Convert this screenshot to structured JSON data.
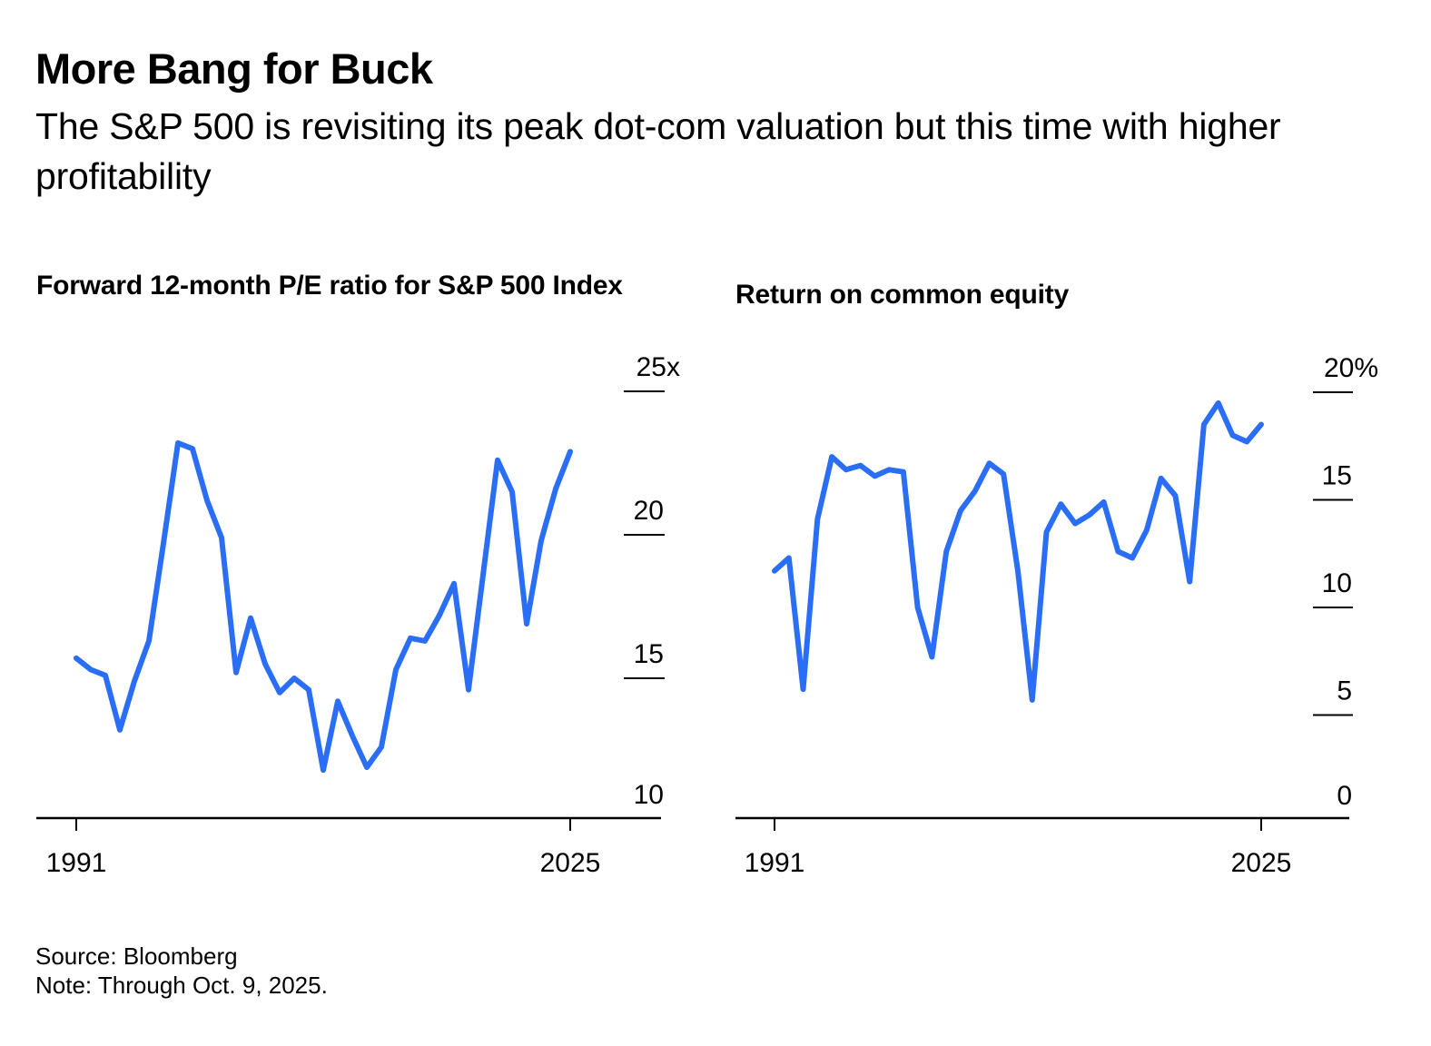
{
  "header": {
    "title": "More Bang for Buck",
    "subtitle": "The S&P 500 is revisiting its peak dot-com valuation but this time with higher profitability"
  },
  "footer": {
    "source": "Source: Bloomberg",
    "note": "Note: Through Oct. 9, 2025."
  },
  "colors": {
    "line": "#2a6ef6",
    "axis": "#000000"
  },
  "chart_data": [
    {
      "type": "line",
      "title": "Forward 12-month P/E ratio for S&P 500 Index",
      "xlabel": "",
      "ylabel": "",
      "x": [
        1991,
        1992,
        1993,
        1994,
        1995,
        1996,
        1997,
        1998,
        1999,
        2000,
        2001,
        2002,
        2003,
        2004,
        2005,
        2006,
        2007,
        2008,
        2009,
        2010,
        2011,
        2012,
        2013,
        2014,
        2015,
        2016,
        2017,
        2018,
        2019,
        2020,
        2021,
        2022,
        2023,
        2024,
        2025
      ],
      "series": [
        {
          "name": "Forward P/E",
          "values": [
            15.7,
            15.3,
            15.1,
            13.2,
            14.9,
            16.3,
            19.7,
            23.2,
            23.0,
            21.2,
            19.9,
            15.2,
            17.1,
            15.5,
            14.5,
            15.0,
            14.6,
            11.8,
            14.2,
            13.0,
            11.9,
            12.6,
            15.3,
            16.4,
            16.3,
            17.2,
            18.3,
            14.6,
            18.6,
            22.6,
            21.5,
            16.9,
            19.8,
            21.6,
            22.9
          ]
        }
      ],
      "xlim": [
        1991,
        2025
      ],
      "ylim": [
        10,
        25
      ],
      "x_tick_labels": [
        "1991",
        "2025"
      ],
      "x_ticks": [
        1991,
        2025
      ],
      "y_ticks": [
        10,
        15,
        20,
        25
      ],
      "y_tick_labels": [
        "10",
        "15",
        "20",
        "25x"
      ],
      "grid": "short tick marks at right",
      "y_axis_position": "right",
      "legend": "none"
    },
    {
      "type": "line",
      "title": "Return on common equity",
      "xlabel": "",
      "ylabel": "",
      "x": [
        1991,
        1992,
        1993,
        1994,
        1995,
        1996,
        1997,
        1998,
        1999,
        2000,
        2001,
        2002,
        2003,
        2004,
        2005,
        2006,
        2007,
        2008,
        2009,
        2010,
        2011,
        2012,
        2013,
        2014,
        2015,
        2016,
        2017,
        2018,
        2019,
        2020,
        2021,
        2022,
        2023,
        2024,
        2025
      ],
      "series": [
        {
          "name": "Return on common equity",
          "values": [
            11.7,
            12.3,
            6.2,
            14.1,
            17.0,
            16.4,
            16.6,
            16.1,
            16.4,
            16.3,
            10.0,
            7.7,
            12.6,
            14.5,
            15.4,
            16.7,
            16.2,
            11.7,
            5.7,
            13.5,
            14.8,
            13.9,
            14.3,
            14.9,
            12.6,
            12.3,
            13.6,
            16.0,
            15.2,
            11.2,
            18.5,
            19.5,
            18.0,
            17.7,
            18.5
          ]
        }
      ],
      "xlim": [
        1991,
        2025
      ],
      "ylim": [
        0,
        20
      ],
      "x_tick_labels": [
        "1991",
        "2025"
      ],
      "x_ticks": [
        1991,
        2025
      ],
      "y_ticks": [
        0,
        5,
        10,
        15,
        20
      ],
      "y_tick_labels": [
        "0",
        "5",
        "10",
        "15",
        "20%"
      ],
      "grid": "short tick marks at right",
      "y_axis_position": "right",
      "legend": "none"
    }
  ]
}
